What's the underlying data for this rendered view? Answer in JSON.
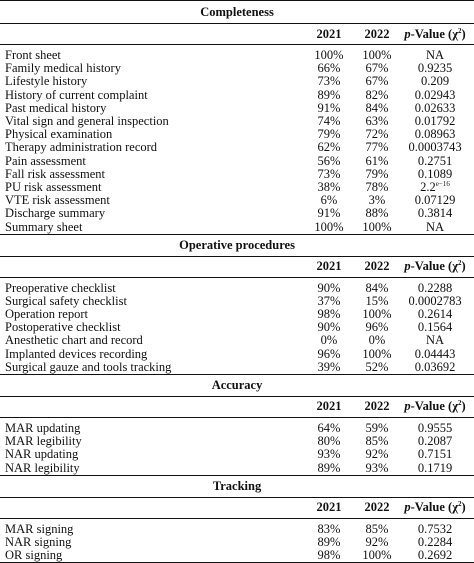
{
  "header_cols": {
    "year1": "2021",
    "year2": "2022",
    "pvalue_italic": "p",
    "pvalue_rest": "-Value (χ",
    "pvalue_sup": "2",
    "pvalue_close": ")"
  },
  "sections": [
    {
      "title": "Completeness",
      "rows": [
        {
          "label": "Front sheet",
          "y2021": "100%",
          "y2022": "100%",
          "p": "NA"
        },
        {
          "label": "Family medical history",
          "y2021": "66%",
          "y2022": "67%",
          "p": "0.9235"
        },
        {
          "label": "Lifestyle history",
          "y2021": "73%",
          "y2022": "67%",
          "p": "0.209"
        },
        {
          "label": "History of current complaint",
          "y2021": "89%",
          "y2022": "82%",
          "p": "0.02943"
        },
        {
          "label": "Past medical history",
          "y2021": "91%",
          "y2022": "84%",
          "p": "0.02633"
        },
        {
          "label": "Vital sign and general inspection",
          "y2021": "74%",
          "y2022": "63%",
          "p": "0.01792"
        },
        {
          "label": "Physical examination",
          "y2021": "79%",
          "y2022": "72%",
          "p": "0.08963"
        },
        {
          "label": "Therapy administration record",
          "y2021": "62%",
          "y2022": "77%",
          "p": "0.0003743"
        },
        {
          "label": "Pain assessment",
          "y2021": "56%",
          "y2022": "61%",
          "p": "0.2751"
        },
        {
          "label": "Fall risk assessment",
          "y2021": "73%",
          "y2022": "79%",
          "p": "0.1089"
        },
        {
          "label": "PU risk assessment",
          "y2021": "38%",
          "y2022": "78%",
          "p": "2.2",
          "p_sup": "e−16"
        },
        {
          "label": "VTE risk assessment",
          "y2021": "6%",
          "y2022": "3%",
          "p": "0.07129"
        },
        {
          "label": "Discharge summary",
          "y2021": "91%",
          "y2022": "88%",
          "p": "0.3814"
        },
        {
          "label": "Summary sheet",
          "y2021": "100%",
          "y2022": "100%",
          "p": "NA"
        }
      ]
    },
    {
      "title": "Operative procedures",
      "rows": [
        {
          "label": "Preoperative checklist",
          "y2021": "90%",
          "y2022": "84%",
          "p": "0.2288"
        },
        {
          "label": "Surgical safety checklist",
          "y2021": "37%",
          "y2022": "15%",
          "p": "0.0002783"
        },
        {
          "label": "Operation report",
          "y2021": "98%",
          "y2022": "100%",
          "p": "0.2614"
        },
        {
          "label": "Postoperative checklist",
          "y2021": "90%",
          "y2022": "96%",
          "p": "0.1564"
        },
        {
          "label": "Anesthetic chart and record",
          "y2021": "0%",
          "y2022": "0%",
          "p": "NA"
        },
        {
          "label": "Implanted devices recording",
          "y2021": "96%",
          "y2022": "100%",
          "p": "0.04443"
        },
        {
          "label": "Surgical gauze and tools tracking",
          "y2021": "39%",
          "y2022": "52%",
          "p": "0.03692"
        }
      ]
    },
    {
      "title": "Accuracy",
      "rows": [
        {
          "label": "MAR updating",
          "y2021": "64%",
          "y2022": "59%",
          "p": "0.9555"
        },
        {
          "label": "MAR legibility",
          "y2021": "80%",
          "y2022": "85%",
          "p": "0.2087"
        },
        {
          "label": "NAR updating",
          "y2021": "93%",
          "y2022": "92%",
          "p": "0.7151"
        },
        {
          "label": "NAR legibility",
          "y2021": "89%",
          "y2022": "93%",
          "p": "0.1719"
        }
      ]
    },
    {
      "title": "Tracking",
      "rows": [
        {
          "label": "MAR signing",
          "y2021": "83%",
          "y2022": "85%",
          "p": "0.7532"
        },
        {
          "label": "NAR signing",
          "y2021": "89%",
          "y2022": "92%",
          "p": "0.2284"
        },
        {
          "label": "OR signing",
          "y2021": "98%",
          "y2022": "100%",
          "p": "0.2692"
        }
      ]
    }
  ]
}
